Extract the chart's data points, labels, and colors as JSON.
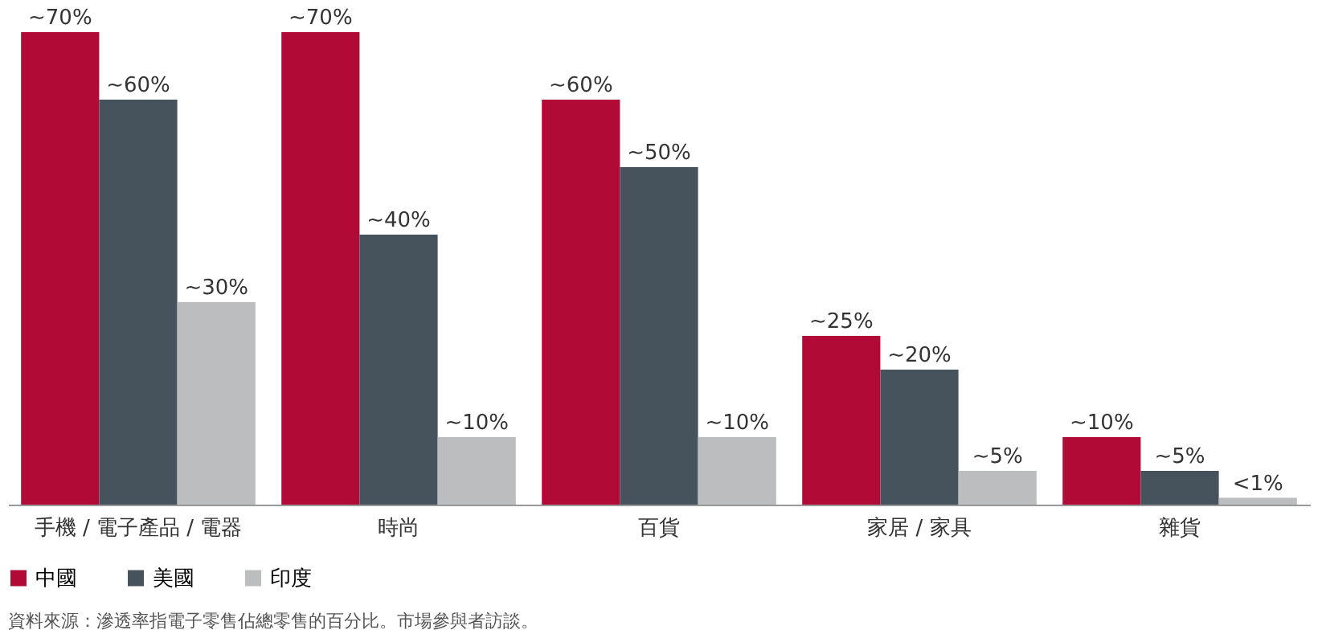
{
  "chart_data": {
    "type": "bar",
    "categories": [
      "手機 / 電子產品 / 電器",
      "時尚",
      "百貨",
      "家居 / 家具",
      "雜貨"
    ],
    "series": [
      {
        "name": "中國",
        "color": "#b10a37",
        "values": [
          70,
          70,
          60,
          25,
          10
        ],
        "value_labels": [
          "~70%",
          "~70%",
          "~60%",
          "~25%",
          "~10%"
        ]
      },
      {
        "name": "美國",
        "color": "#46535d",
        "values": [
          60,
          40,
          50,
          20,
          5
        ],
        "value_labels": [
          "~60%",
          "~40%",
          "~50%",
          "~20%",
          "~5%"
        ]
      },
      {
        "name": "印度",
        "color": "#bcbdbf",
        "values": [
          30,
          10,
          10,
          5,
          1
        ],
        "value_labels": [
          "~30%",
          "~10%",
          "~10%",
          "~5%",
          "<1%"
        ]
      }
    ],
    "legend": "bottom",
    "grid": false,
    "annotations": [
      "資料來源：滲透率指電子零售佔總零售的百分比。市場參與者訪談。"
    ]
  }
}
